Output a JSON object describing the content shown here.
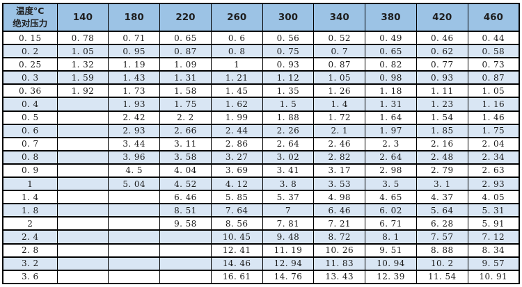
{
  "table": {
    "title_semantic": "temperature-vs-absolute-pressure-table",
    "header": {
      "corner_top": "温度°C",
      "corner_bottom": "绝对压力",
      "columns": [
        "140",
        "180",
        "220",
        "260",
        "300",
        "340",
        "380",
        "420",
        "460"
      ]
    },
    "rows": [
      {
        "pressure": "0.15",
        "values": [
          "0.78",
          "0.71",
          "0.65",
          "0.6",
          "0.56",
          "0.52",
          "0.49",
          "0.46",
          "0.44"
        ]
      },
      {
        "pressure": "0.2",
        "values": [
          "1.05",
          "0.95",
          "0.87",
          "0.8",
          "0.75",
          "0.7",
          "0.65",
          "0.62",
          "0.58"
        ]
      },
      {
        "pressure": "0.25",
        "values": [
          "1.32",
          "1.19",
          "1.09",
          "1",
          "0.93",
          "0.87",
          "0.82",
          "0.77",
          "0.73"
        ]
      },
      {
        "pressure": "0.3",
        "values": [
          "1.59",
          "1.43",
          "1.31",
          "1.21",
          "1.12",
          "1.05",
          "0.98",
          "0.93",
          "0.87"
        ]
      },
      {
        "pressure": "0.36",
        "values": [
          "1.92",
          "1.73",
          "1.58",
          "1.45",
          "1.35",
          "1.26",
          "1.18",
          "1.11",
          "1.05"
        ]
      },
      {
        "pressure": "0.4",
        "values": [
          "",
          "1.93",
          "1.75",
          "1.62",
          "1.5",
          "1.4",
          "1.31",
          "1.23",
          "1.16"
        ]
      },
      {
        "pressure": "0.5",
        "values": [
          "",
          "2.42",
          "2.2",
          "1.99",
          "1.88",
          "1.72",
          "1.64",
          "1.54",
          "1.46"
        ]
      },
      {
        "pressure": "0.6",
        "values": [
          "",
          "2.93",
          "2.66",
          "2.44",
          "2.26",
          "2.1",
          "1.97",
          "1.85",
          "1.75"
        ]
      },
      {
        "pressure": "0.7",
        "values": [
          "",
          "3.44",
          "3.11",
          "2.86",
          "2.64",
          "2.46",
          "2.3",
          "2.16",
          "2.04"
        ]
      },
      {
        "pressure": "0.8",
        "values": [
          "",
          "3.96",
          "3.58",
          "3.27",
          "3.02",
          "2.82",
          "2.64",
          "2.48",
          "2.34"
        ]
      },
      {
        "pressure": "0.9",
        "values": [
          "",
          "4.5",
          "4.04",
          "3.69",
          "3.41",
          "3.17",
          "2.98",
          "2.79",
          "2.63"
        ]
      },
      {
        "pressure": "1",
        "values": [
          "",
          "5.04",
          "4.52",
          "4.12",
          "3.8",
          "3.53",
          "3.5",
          "3.1",
          "2.93"
        ]
      },
      {
        "pressure": "1.4",
        "values": [
          "",
          "",
          "6.46",
          "5.85",
          "5.37",
          "4.98",
          "4.65",
          "4.37",
          "4.05"
        ]
      },
      {
        "pressure": "1.8",
        "values": [
          "",
          "",
          "8.51",
          "7.64",
          "7",
          "6.46",
          "6.02",
          "5.64",
          "5.31"
        ]
      },
      {
        "pressure": "2",
        "values": [
          "",
          "",
          "9.58",
          "8.56",
          "7.81",
          "7.21",
          "6.71",
          "6.28",
          "5.91"
        ]
      },
      {
        "pressure": "2.4",
        "values": [
          "",
          "",
          "",
          "10.45",
          "9.48",
          "8.72",
          "8.1",
          "7.57",
          "7.12"
        ]
      },
      {
        "pressure": "2.8",
        "values": [
          "",
          "",
          "",
          "12.41",
          "11.19",
          "10.26",
          "9.51",
          "8.88",
          "8.34"
        ]
      },
      {
        "pressure": "3.2",
        "values": [
          "",
          "",
          "",
          "14.46",
          "12.94",
          "11.83",
          "10.94",
          "10.2",
          "9.57"
        ]
      },
      {
        "pressure": "3.6",
        "values": [
          "",
          "",
          "",
          "16.61",
          "14.76",
          "13.43",
          "12.39",
          "11.54",
          "10.91"
        ]
      }
    ],
    "colors": {
      "header_bg": "#9CC3E5",
      "alt_row_bg": "#D9E6F4",
      "row_bg": "#FFFFFF",
      "border": "#000000",
      "text": "#1A1A1A"
    }
  }
}
